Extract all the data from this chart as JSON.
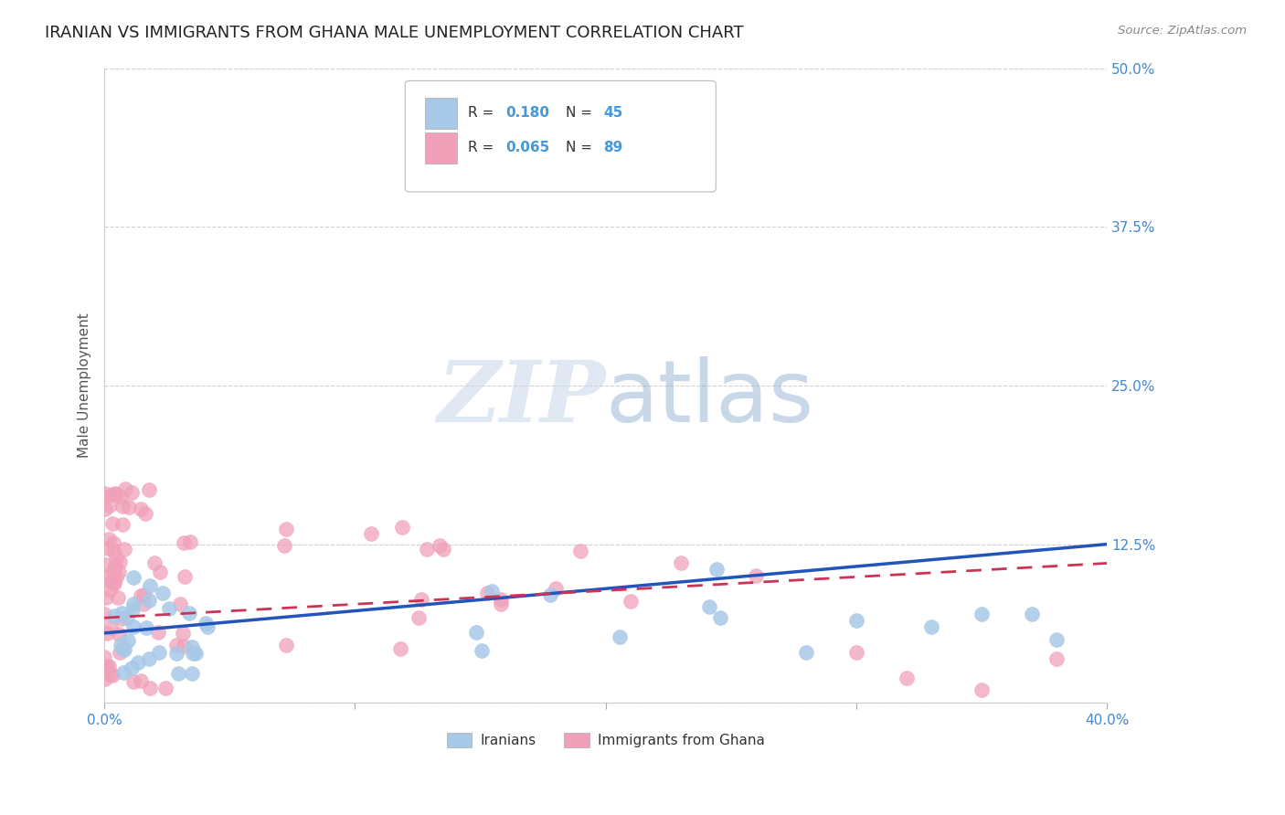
{
  "title": "IRANIAN VS IMMIGRANTS FROM GHANA MALE UNEMPLOYMENT CORRELATION CHART",
  "source": "Source: ZipAtlas.com",
  "ylabel": "Male Unemployment",
  "xlim": [
    0.0,
    0.4
  ],
  "ylim": [
    0.0,
    0.5
  ],
  "yticks": [
    0.0,
    0.125,
    0.25,
    0.375,
    0.5
  ],
  "xticks": [
    0.0,
    0.1,
    0.2,
    0.3,
    0.4
  ],
  "ytick_labels": [
    "",
    "12.5%",
    "25.0%",
    "37.5%",
    "50.0%"
  ],
  "xtick_labels": [
    "0.0%",
    "",
    "",
    "",
    "40.0%"
  ],
  "grid_color": "#cccccc",
  "background_color": "#ffffff",
  "series1_color": "#a8c8e8",
  "series2_color": "#f0a0b8",
  "line1_color": "#2255bb",
  "line2_color": "#cc3355",
  "series1_label": "Iranians",
  "series2_label": "Immigrants from Ghana",
  "title_fontsize": 13,
  "axis_label_fontsize": 11,
  "tick_fontsize": 11,
  "tick_color": "#4488cc",
  "watermark_color": "#c8d8ea",
  "watermark_alpha": 0.55
}
